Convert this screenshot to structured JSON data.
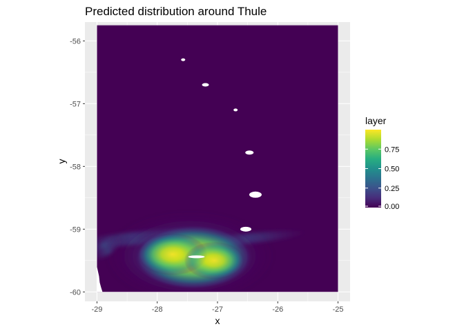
{
  "chart_data": {
    "type": "heatmap",
    "title": "Predicted distribution around Thule",
    "xlabel": "x",
    "ylabel": "y",
    "xlim": [
      -29.2,
      -24.8
    ],
    "ylim": [
      -60.15,
      -55.7
    ],
    "x_ticks": [
      -29,
      -28,
      -27,
      -26,
      -25
    ],
    "y_ticks": [
      -56,
      -57,
      -58,
      -59,
      -60
    ],
    "x_tick_labels": [
      "-29",
      "-28",
      "-27",
      "-26",
      "-25"
    ],
    "y_tick_labels": [
      "-56",
      "-57",
      "-58",
      "-59",
      "-60"
    ],
    "raster_extent": {
      "xmin": -29.0,
      "xmax": -25.0,
      "ymin": -60.0,
      "ymax": -55.75
    },
    "grid": true,
    "legend": {
      "title": "layer",
      "placement": "right",
      "ticks": [
        0.0,
        0.25,
        0.5,
        0.75
      ],
      "tick_labels": [
        "0.00",
        "0.25",
        "0.50",
        "0.75"
      ],
      "range": [
        0,
        1
      ]
    },
    "colorscale": "viridis",
    "colors": {
      "panel_bg": "#EBEBEB",
      "grid_major": "#FFFFFF",
      "low": "#440154",
      "mid": "#21908C",
      "high": "#FDE725"
    },
    "hotspots": [
      {
        "x": -27.4,
        "y": -59.45,
        "value": 0.98
      },
      {
        "x": -27.75,
        "y": -59.4,
        "value": 0.85
      },
      {
        "x": -27.05,
        "y": -59.5,
        "value": 0.8
      }
    ],
    "islands": [
      {
        "x": -27.57,
        "y": -56.3
      },
      {
        "x": -27.2,
        "y": -56.7
      },
      {
        "x": -26.7,
        "y": -57.1
      },
      {
        "x": -26.47,
        "y": -57.78
      },
      {
        "x": -26.37,
        "y": -58.45
      },
      {
        "x": -26.53,
        "y": -59.0
      },
      {
        "x": -27.35,
        "y": -59.44
      }
    ]
  }
}
